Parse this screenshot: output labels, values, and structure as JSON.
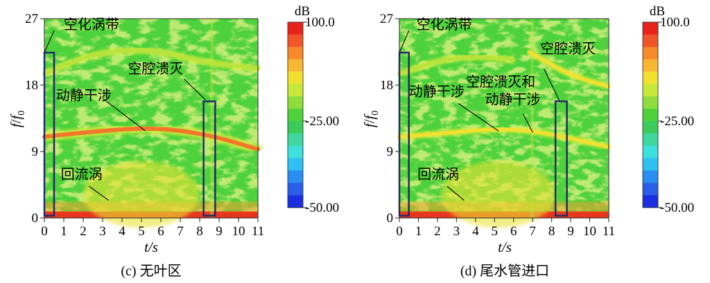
{
  "chart_data": [
    {
      "type": "heatmap",
      "caption": "(c) 无叶区",
      "xlabel": "t/s",
      "ylabel_main": "f",
      "ylabel_sub": "f",
      "ylabel_subscript": "0",
      "x_ticks": [
        0,
        1,
        2,
        3,
        4,
        5,
        6,
        7,
        8,
        9,
        10,
        11
      ],
      "y_ticks": [
        0,
        9,
        18,
        27
      ],
      "xlim": [
        0,
        11
      ],
      "ylim": [
        0,
        27
      ],
      "colorbar": {
        "unit": "dB",
        "ticks": [
          "100.0",
          "25.00",
          "50.00"
        ],
        "tick_signs": [
          "",
          "-",
          "-"
        ],
        "range": [
          -50,
          100
        ],
        "colors": [
          "#e8231c",
          "#f0552a",
          "#f58a2a",
          "#f7b733",
          "#f2e030",
          "#c6e83a",
          "#8fdd3a",
          "#4ed23c",
          "#3ccb5a",
          "#3fd6a0",
          "#3ee0dc",
          "#2fbff0",
          "#2a8ef0",
          "#2a5ee8",
          "#1a2fe0"
        ]
      },
      "annotations": [
        {
          "id": "kong",
          "text": "空化涡带",
          "x": 1.0,
          "y": 25.6
        },
        {
          "id": "dong",
          "text": "动静干涉",
          "x": 0.6,
          "y": 16.0
        },
        {
          "id": "beng",
          "text": "空腔溃灭",
          "x": 4.3,
          "y": 19.6
        },
        {
          "id": "hui",
          "text": "回流涡",
          "x": 0.85,
          "y": 5.3
        }
      ],
      "leader_lines": [
        {
          "from": [
            0.0,
            22.4
          ],
          "to": [
            0.5,
            25.4
          ]
        },
        {
          "from": [
            3.0,
            16.2
          ],
          "to": [
            5.2,
            11.8
          ]
        },
        {
          "from": [
            7.2,
            18.8
          ],
          "to": [
            8.3,
            16.0
          ]
        },
        {
          "from": [
            2.3,
            4.3
          ],
          "to": [
            3.3,
            2.4
          ]
        }
      ],
      "boxes": [
        {
          "x0": 0.0,
          "x1": 0.5,
          "y0": 0.3,
          "y1": 22.4
        },
        {
          "x0": 8.2,
          "x1": 8.8,
          "y0": 0.3,
          "y1": 15.8
        }
      ],
      "bands": [
        {
          "level": "orange",
          "points": [
            [
              0.0,
              11.0
            ],
            [
              2.5,
              11.7
            ],
            [
              5.0,
              12.2
            ],
            [
              7.0,
              11.9
            ],
            [
              9.0,
              10.9
            ],
            [
              11.0,
              9.3
            ]
          ]
        },
        {
          "level": "yellow-green",
          "points": [
            [
              0.0,
              19.5
            ],
            [
              2.0,
              21.8
            ],
            [
              4.0,
              22.8
            ],
            [
              6.0,
              22.6
            ],
            [
              8.0,
              21.2
            ],
            [
              11.0,
              20.2
            ]
          ]
        }
      ]
    },
    {
      "type": "heatmap",
      "caption": "(d) 尾水管进口",
      "xlabel": "t/s",
      "ylabel_main": "f",
      "ylabel_sub": "f",
      "ylabel_subscript": "0",
      "x_ticks": [
        0,
        1,
        2,
        3,
        4,
        5,
        6,
        7,
        8,
        9,
        10,
        11
      ],
      "y_ticks": [
        0,
        9,
        18,
        27
      ],
      "xlim": [
        0,
        11
      ],
      "ylim": [
        0,
        27
      ],
      "colorbar": {
        "unit": "dB",
        "ticks": [
          "100.0",
          "25.00",
          "50.00"
        ],
        "tick_signs": [
          "",
          "-",
          "-"
        ],
        "range": [
          -50,
          100
        ],
        "colors": [
          "#e8231c",
          "#f0552a",
          "#f58a2a",
          "#f7b733",
          "#f2e030",
          "#c6e83a",
          "#8fdd3a",
          "#4ed23c",
          "#3ccb5a",
          "#3fd6a0",
          "#3ee0dc",
          "#2fbff0",
          "#2a8ef0",
          "#2a5ee8",
          "#1a2fe0"
        ]
      },
      "annotations": [
        {
          "id": "kong",
          "text": "空化涡带",
          "x": 0.9,
          "y": 25.6
        },
        {
          "id": "dong",
          "text": "动静干涉",
          "x": 0.5,
          "y": 16.5
        },
        {
          "id": "beng",
          "text": "空腔溃灭",
          "x": 7.4,
          "y": 22.3
        },
        {
          "id": "hebing1",
          "text": "空腔溃灭和",
          "x": 3.5,
          "y": 17.8
        },
        {
          "id": "hebing2",
          "text": "动静干涉",
          "x": 4.5,
          "y": 15.4
        },
        {
          "id": "hui",
          "text": "回流涡",
          "x": 0.95,
          "y": 5.3
        }
      ],
      "leader_lines": [
        {
          "from": [
            0.0,
            22.4
          ],
          "to": [
            0.5,
            25.4
          ]
        },
        {
          "from": [
            3.1,
            15.5
          ],
          "to": [
            5.2,
            11.8
          ]
        },
        {
          "from": [
            7.6,
            20.2
          ],
          "to": [
            8.4,
            15.9
          ]
        },
        {
          "from": [
            6.5,
            14.1
          ],
          "to": [
            7.0,
            11.6
          ]
        },
        {
          "from": [
            2.5,
            4.3
          ],
          "to": [
            3.4,
            2.4
          ]
        }
      ],
      "boxes": [
        {
          "x0": 0.0,
          "x1": 0.5,
          "y0": 0.3,
          "y1": 22.4
        },
        {
          "x0": 8.2,
          "x1": 8.8,
          "y0": 0.3,
          "y1": 15.8
        }
      ],
      "bands": [
        {
          "level": "yellow",
          "points": [
            [
              0.0,
              11.0
            ],
            [
              2.5,
              11.5
            ],
            [
              5.0,
              12.1
            ],
            [
              7.0,
              11.8
            ],
            [
              9.0,
              10.8
            ],
            [
              11.0,
              9.6
            ]
          ]
        },
        {
          "level": "yellow",
          "points": [
            [
              6.8,
              22.5
            ],
            [
              7.5,
              21.5
            ],
            [
              9.0,
              19.3
            ],
            [
              11.0,
              17.8
            ]
          ]
        },
        {
          "level": "yellow-green",
          "points": [
            [
              0.0,
              19.5
            ],
            [
              2.0,
              21.3
            ],
            [
              4.0,
              22.0
            ],
            [
              6.0,
              21.4
            ]
          ]
        }
      ]
    }
  ]
}
